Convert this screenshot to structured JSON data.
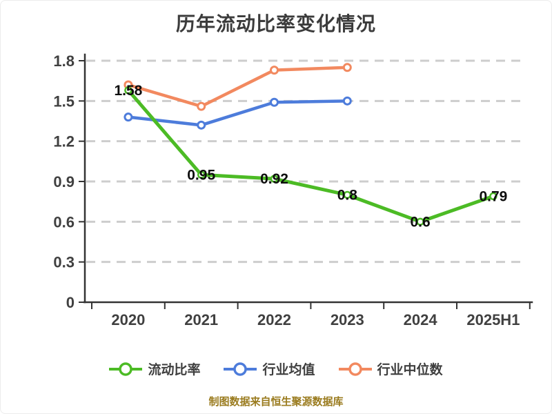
{
  "title": "历年流动比率变化情况",
  "footer": "制图数据来自恒生聚源数据库",
  "chart_data": {
    "type": "line",
    "title": "历年流动比率变化情况",
    "categories": [
      "2020",
      "2021",
      "2022",
      "2023",
      "2024",
      "2025H1"
    ],
    "y_ticks": [
      {
        "label": "1.8",
        "value": 1.8
      },
      {
        "label": "1.5",
        "value": 1.5
      },
      {
        "label": "1.2",
        "value": 1.2
      },
      {
        "label": "0.9",
        "value": 0.9
      },
      {
        "label": "0.6",
        "value": 0.6
      },
      {
        "label": "0.3",
        "value": 0.3
      },
      {
        "label": "0",
        "value": 0
      }
    ],
    "ylim": [
      0,
      1.8
    ],
    "grid": "horizontal-dashed",
    "legend_position": "bottom",
    "series": [
      {
        "name": "流动比率",
        "color": "#4cbb25",
        "values": [
          1.58,
          0.95,
          0.92,
          0.8,
          0.6,
          0.79
        ],
        "point_labels": [
          "1.58",
          "0.95",
          "0.92",
          "0.8",
          "0.6",
          "0.79"
        ]
      },
      {
        "name": "行业均值",
        "color": "#4d7cdb",
        "values": [
          1.38,
          1.32,
          1.49,
          1.5,
          null,
          null
        ],
        "point_labels": []
      },
      {
        "name": "行业中位数",
        "color": "#f2895f",
        "values": [
          1.62,
          1.46,
          1.73,
          1.75,
          null,
          null
        ],
        "point_labels": []
      }
    ],
    "colors": {
      "grid": "#cdcdcd",
      "axis": "#333333",
      "tick_label": "#404040",
      "point_label": "#0d0d0d",
      "title": "#3b3b3b",
      "legend_label": "#3e3e3e",
      "footer": "#9a7b1e"
    }
  }
}
